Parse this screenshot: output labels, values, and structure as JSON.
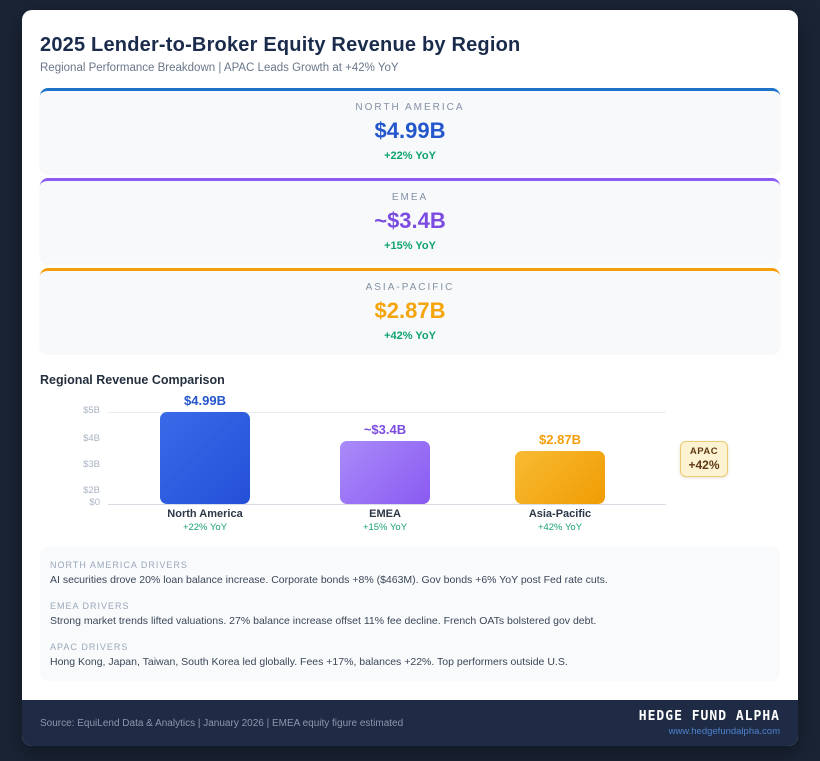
{
  "header": {
    "title": "2025 Lender-to-Broker Equity Revenue by Region",
    "subtitle": "Regional Performance Breakdown | APAC Leads Growth at +42% YoY"
  },
  "regions": [
    {
      "name": "NORTH AMERICA",
      "value": "$4.99B",
      "delta": "+22% YoY",
      "accent_color": "#1e73c8",
      "value_color": "#2456cc"
    },
    {
      "name": "EMEA",
      "value": "~$3.4B",
      "delta": "+15% YoY",
      "accent_color": "#8b5cf6",
      "value_color": "#7c4ce0"
    },
    {
      "name": "ASIA-PACIFIC",
      "value": "$2.87B",
      "delta": "+42% YoY",
      "accent_color": "#f59e0b",
      "value_color": "#f5a50a"
    }
  ],
  "chart_data": {
    "type": "bar",
    "title": "Regional Revenue Comparison",
    "categories": [
      "North America",
      "EMEA",
      "Asia-Pacific"
    ],
    "values": [
      4.99,
      3.4,
      2.87
    ],
    "value_labels": [
      "$4.99B",
      "~$3.4B",
      "$2.87B"
    ],
    "deltas": [
      "+22% YoY",
      "+15% YoY",
      "+42% YoY"
    ],
    "label_colors": [
      "#2456cc",
      "#7c4ce0",
      "#f59d0b"
    ],
    "bar_gradients": [
      [
        "#3a6ae8",
        "#2450d8"
      ],
      [
        "#a98bf8",
        "#8a5af2"
      ],
      [
        "#f8bb33",
        "#f09c03"
      ]
    ],
    "yticks": [
      "$5B",
      "$4B",
      "$3B",
      "$2B",
      "$0"
    ],
    "ylim": [
      0,
      5.2
    ],
    "xlabel": "",
    "ylabel": "",
    "grid": "top-line-and-baseline-only",
    "legend": "none",
    "annotation": {
      "line1": "APAC",
      "line2": "+42%"
    }
  },
  "drivers": [
    {
      "label": "NORTH AMERICA DRIVERS",
      "text": "AI securities drove 20% loan balance increase. Corporate bonds +8% ($463M). Gov bonds +6% YoY post Fed rate cuts."
    },
    {
      "label": "EMEA DRIVERS",
      "text": "Strong market trends lifted valuations. 27% balance increase offset 11% fee decline. French OATs bolstered gov debt."
    },
    {
      "label": "APAC DRIVERS",
      "text": "Hong Kong, Japan, Taiwan, South Korea led globally. Fees +17%, balances +22%. Top performers outside U.S."
    }
  ],
  "footer": {
    "source": "Source: EquiLend Data & Analytics | January 2026 | EMEA equity figure estimated",
    "brand": "HEDGE FUND ALPHA",
    "website": "www.hedgefundalpha.com"
  }
}
